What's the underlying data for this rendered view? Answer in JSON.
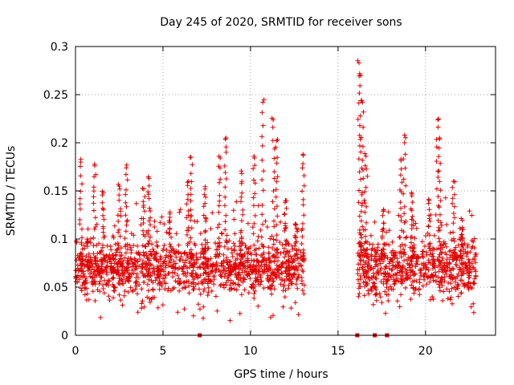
{
  "chart_data": {
    "type": "scatter",
    "title": "Day 245 of 2020, SRMTID for receiver sons",
    "xlabel": "GPS time / hours",
    "ylabel": "SRMTID / TECUs",
    "xlim": [
      0,
      24
    ],
    "ylim": [
      0,
      0.3
    ],
    "x_ticks": [
      0,
      5,
      10,
      15,
      20
    ],
    "x_tick_labels": [
      "0",
      "5",
      "10",
      "15",
      "20"
    ],
    "y_ticks": [
      0,
      0.05,
      0.1,
      0.15,
      0.2,
      0.25,
      0.3
    ],
    "y_tick_labels": [
      "0",
      "0.05",
      "0.1",
      "0.15",
      "0.2",
      "0.25",
      "0.3"
    ],
    "grid": true,
    "marker": "+",
    "color": "#e00000",
    "series": [
      {
        "name": "SRMTID",
        "segments": [
          {
            "x_start": 0.0,
            "x_end": 13.1,
            "typical_low": 0.04,
            "typical_high": 0.1
          },
          {
            "x_start": 16.1,
            "x_end": 22.9,
            "typical_low": 0.04,
            "typical_high": 0.1
          }
        ],
        "peaks": [
          {
            "x": 0.3,
            "y": 0.18
          },
          {
            "x": 1.1,
            "y": 0.176
          },
          {
            "x": 1.6,
            "y": 0.148
          },
          {
            "x": 2.5,
            "y": 0.155
          },
          {
            "x": 2.9,
            "y": 0.174
          },
          {
            "x": 3.9,
            "y": 0.152
          },
          {
            "x": 4.2,
            "y": 0.163
          },
          {
            "x": 5.4,
            "y": 0.128
          },
          {
            "x": 6.4,
            "y": 0.159
          },
          {
            "x": 6.6,
            "y": 0.185
          },
          {
            "x": 7.4,
            "y": 0.152
          },
          {
            "x": 8.2,
            "y": 0.186
          },
          {
            "x": 8.6,
            "y": 0.205
          },
          {
            "x": 9.5,
            "y": 0.168
          },
          {
            "x": 10.2,
            "y": 0.186
          },
          {
            "x": 10.7,
            "y": 0.242
          },
          {
            "x": 11.3,
            "y": 0.224
          },
          {
            "x": 11.5,
            "y": 0.202
          },
          {
            "x": 12.0,
            "y": 0.14
          },
          {
            "x": 12.6,
            "y": 0.115
          },
          {
            "x": 13.0,
            "y": 0.188
          },
          {
            "x": 16.2,
            "y": 0.283
          },
          {
            "x": 16.3,
            "y": 0.27
          },
          {
            "x": 16.4,
            "y": 0.242
          },
          {
            "x": 16.6,
            "y": 0.186
          },
          {
            "x": 17.6,
            "y": 0.13
          },
          {
            "x": 18.6,
            "y": 0.183
          },
          {
            "x": 18.8,
            "y": 0.208
          },
          {
            "x": 19.2,
            "y": 0.148
          },
          {
            "x": 20.2,
            "y": 0.14
          },
          {
            "x": 20.7,
            "y": 0.224
          },
          {
            "x": 20.8,
            "y": 0.205
          },
          {
            "x": 21.6,
            "y": 0.16
          },
          {
            "x": 22.1,
            "y": 0.112
          }
        ]
      }
    ],
    "zero_markers_x": [
      7.1,
      16.1,
      17.1,
      17.8
    ]
  }
}
